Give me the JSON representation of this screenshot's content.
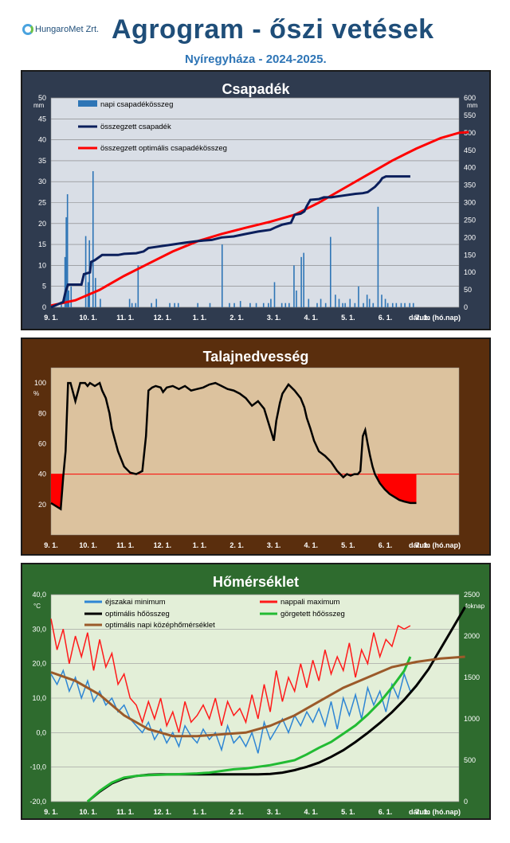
{
  "header": {
    "logo_text": "HungaroMet Zrt.",
    "title": "Agrogram - őszi vetések",
    "subtitle": "Nyíregyháza  - 2024-2025."
  },
  "colors": {
    "precip_frame": "#2f3b4f",
    "moisture_frame": "#5a2e0d",
    "temp_frame": "#2e6b2e",
    "title_blue": "#1f4e79"
  },
  "x_axis": {
    "ticks": [
      "9. 1.",
      "10. 1.",
      "11. 1.",
      "12. 1.",
      "1. 1.",
      "2. 1.",
      "3. 1.",
      "4. 1.",
      "5. 1.",
      "6. 1.",
      "7. 1."
    ],
    "label": "dátum (hó.nap)"
  },
  "chart_data": [
    {
      "type": "bar",
      "title": "Csapadék",
      "y_left_unit": "mm",
      "y_right_unit": "mm",
      "ylim_left": [
        0,
        50
      ],
      "ylim_right": [
        0,
        600
      ],
      "y_left_ticks": [
        "0",
        "5",
        "10",
        "15",
        "20",
        "25",
        "30",
        "35",
        "40",
        "45",
        "50"
      ],
      "y_right_ticks": [
        "0",
        "50",
        "100",
        "150",
        "200",
        "250",
        "300",
        "350",
        "400",
        "450",
        "500",
        "550",
        "600"
      ],
      "series": [
        {
          "name": "napi csapadékösszeg",
          "color": "#2e75b6",
          "kind": "bar",
          "x": [
            8,
            11,
            12,
            13,
            14,
            16,
            28,
            30,
            31,
            34,
            36,
            40,
            64,
            66,
            69,
            71,
            82,
            86,
            97,
            101,
            104,
            120,
            130,
            140,
            146,
            150,
            155,
            163,
            168,
            174,
            178,
            180,
            183,
            189,
            192,
            195,
            199,
            201,
            205,
            207,
            211,
            218,
            221,
            225,
            229,
            233,
            236,
            239,
            241,
            245,
            249,
            252,
            256,
            259,
            261,
            264,
            268,
            271,
            274,
            276,
            280,
            283,
            287,
            290,
            294,
            297
          ],
          "values": [
            1,
            12,
            21.5,
            27,
            4,
            5,
            17,
            6,
            16,
            32.5,
            7,
            2,
            2,
            1,
            1,
            10,
            1,
            2,
            1,
            1,
            1,
            1,
            1,
            15,
            1,
            1,
            1.5,
            1,
            1,
            1,
            1,
            2,
            6,
            1,
            1,
            1,
            10,
            4,
            12,
            13,
            2,
            1,
            2,
            1,
            16.8,
            3,
            2,
            1,
            1,
            2,
            1,
            5,
            1,
            3,
            2,
            1,
            24,
            3,
            2,
            1,
            1,
            1,
            1,
            1,
            1,
            1
          ]
        },
        {
          "name": "összegzett csapadék",
          "color": "#0b1f5c",
          "kind": "line",
          "axis": "right",
          "x": [
            0,
            10,
            12,
            14,
            25,
            27,
            32,
            33,
            36,
            38,
            42,
            45,
            55,
            60,
            70,
            76,
            80,
            90,
            100,
            110,
            121,
            132,
            140,
            150,
            160,
            170,
            180,
            185,
            190,
            197,
            200,
            205,
            208,
            210,
            213,
            220,
            224,
            230,
            240,
            250,
            256,
            260,
            266,
            270,
            272,
            275,
            285,
            295
          ],
          "values": [
            0,
            15,
            45,
            65,
            65,
            95,
            100,
            130,
            135,
            140,
            150,
            150,
            150,
            153,
            155,
            160,
            170,
            175,
            180,
            185,
            190,
            193,
            200,
            203,
            210,
            217,
            222,
            230,
            237,
            242,
            265,
            268,
            275,
            290,
            308,
            310,
            315,
            315,
            320,
            325,
            327,
            330,
            345,
            360,
            370,
            375,
            375,
            375
          ]
        },
        {
          "name": "összegzett optimális csapadékösszeg",
          "color": "#ff0000",
          "kind": "line",
          "axis": "right",
          "x": [
            0,
            20,
            40,
            60,
            80,
            100,
            121,
            140,
            160,
            180,
            200,
            220,
            240,
            260,
            280,
            300,
            320,
            335,
            343
          ],
          "values": [
            5,
            20,
            50,
            90,
            125,
            160,
            190,
            210,
            228,
            245,
            265,
            300,
            340,
            380,
            420,
            455,
            485,
            500,
            502
          ]
        }
      ]
    },
    {
      "type": "area",
      "title": "Talajnedvesség",
      "y_unit": "%",
      "ylim": [
        0,
        110
      ],
      "y_ticks": [
        "20",
        "40",
        "60",
        "80",
        "100"
      ],
      "threshold": 40,
      "series": [
        {
          "name": "talajnedvesség",
          "color": "#000000",
          "x": [
            0,
            4,
            8,
            10,
            12,
            14,
            16,
            20,
            24,
            28,
            30,
            32,
            36,
            40,
            42,
            45,
            48,
            50,
            55,
            60,
            65,
            70,
            75,
            78,
            80,
            83,
            86,
            90,
            92,
            95,
            100,
            105,
            110,
            115,
            120,
            125,
            130,
            135,
            140,
            145,
            150,
            155,
            160,
            165,
            170,
            175,
            180,
            183,
            185,
            188,
            190,
            195,
            200,
            205,
            208,
            210,
            213,
            216,
            220,
            225,
            230,
            235,
            240,
            243,
            246,
            249,
            252,
            254,
            256,
            258,
            260,
            262,
            264,
            266,
            268,
            270,
            274,
            278,
            282,
            286,
            290,
            295,
            300
          ],
          "values": [
            21,
            19,
            17,
            38,
            55,
            100,
            100,
            88,
            100,
            100,
            98,
            100,
            98,
            100,
            95,
            90,
            80,
            70,
            55,
            45,
            41,
            40,
            42,
            65,
            95,
            97,
            98,
            97,
            94,
            97,
            98,
            96,
            98,
            95,
            96,
            97,
            99,
            100,
            98,
            96,
            95,
            93,
            90,
            85,
            88,
            83,
            70,
            62,
            75,
            87,
            93,
            99,
            95,
            90,
            84,
            77,
            70,
            62,
            55,
            52,
            48,
            42,
            38,
            40,
            39,
            40,
            40,
            42,
            65,
            69,
            60,
            52,
            45,
            40,
            37,
            34,
            30,
            27,
            25,
            23,
            22,
            21,
            21
          ]
        }
      ]
    },
    {
      "type": "line",
      "title": "Hőmérséklet",
      "y_left_unit": "°C",
      "y_right_unit": "foknap",
      "ylim_left": [
        -20,
        40
      ],
      "ylim_right": [
        0,
        2500
      ],
      "y_left_ticks": [
        "-20,0",
        "-10,0",
        "0,0",
        "10,0",
        "20,0",
        "30,0",
        "40,0"
      ],
      "y_right_ticks": [
        "0",
        "500",
        "1000",
        "1500",
        "2000",
        "2500"
      ],
      "series": [
        {
          "name": "éjszakai minimum",
          "color": "#2e86d4",
          "axis": "left",
          "x": [
            0,
            5,
            10,
            15,
            20,
            25,
            30,
            35,
            40,
            45,
            50,
            55,
            60,
            65,
            70,
            75,
            80,
            85,
            90,
            95,
            100,
            105,
            110,
            115,
            120,
            125,
            130,
            135,
            140,
            145,
            150,
            155,
            160,
            165,
            170,
            175,
            180,
            185,
            190,
            195,
            200,
            205,
            210,
            215,
            220,
            225,
            230,
            235,
            240,
            245,
            250,
            255,
            260,
            265,
            270,
            275,
            280,
            285,
            290,
            295
          ],
          "values": [
            17,
            14,
            18,
            12,
            16,
            10,
            15,
            9,
            12,
            8,
            10,
            6,
            8,
            4,
            2,
            0,
            3,
            -2,
            1,
            -3,
            0,
            -4,
            2,
            -1,
            -3,
            1,
            -2,
            0,
            -5,
            2,
            -3,
            -1,
            -4,
            0,
            -6,
            3,
            -2,
            1,
            4,
            0,
            5,
            2,
            6,
            3,
            7,
            2,
            9,
            1,
            10,
            5,
            11,
            4,
            13,
            8,
            12,
            6,
            14,
            10,
            17,
            12
          ]
        },
        {
          "name": "nappali maximum",
          "color": "#ff1a1a",
          "axis": "left",
          "x": [
            0,
            5,
            10,
            15,
            20,
            25,
            30,
            35,
            40,
            45,
            50,
            55,
            60,
            65,
            70,
            75,
            80,
            85,
            90,
            95,
            100,
            105,
            110,
            115,
            120,
            125,
            130,
            135,
            140,
            145,
            150,
            155,
            160,
            165,
            170,
            175,
            180,
            185,
            190,
            195,
            200,
            205,
            210,
            215,
            220,
            225,
            230,
            235,
            240,
            245,
            250,
            255,
            260,
            265,
            270,
            275,
            280,
            285,
            290,
            295
          ],
          "values": [
            33,
            24,
            30,
            20,
            28,
            22,
            29,
            18,
            27,
            19,
            23,
            14,
            17,
            10,
            8,
            3,
            9,
            4,
            10,
            2,
            6,
            0,
            9,
            3,
            5,
            8,
            4,
            10,
            2,
            9,
            5,
            7,
            3,
            11,
            4,
            14,
            6,
            18,
            9,
            16,
            12,
            20,
            13,
            21,
            15,
            24,
            17,
            22,
            18,
            26,
            16,
            24,
            20,
            29,
            22,
            27,
            25,
            31,
            30,
            31
          ]
        },
        {
          "name": "optimális hőösszeg",
          "color": "#000000",
          "axis": "right",
          "x": [
            30,
            40,
            50,
            60,
            70,
            80,
            90,
            110,
            130,
            150,
            170,
            180,
            190,
            200,
            210,
            220,
            230,
            240,
            250,
            260,
            270,
            280,
            290,
            300,
            310,
            320,
            330,
            340
          ],
          "values": [
            0,
            120,
            220,
            280,
            310,
            325,
            330,
            330,
            330,
            330,
            330,
            335,
            350,
            380,
            420,
            470,
            540,
            620,
            720,
            830,
            950,
            1080,
            1230,
            1400,
            1600,
            1850,
            2100,
            2350
          ]
        },
        {
          "name": "görgetett hőösszeg",
          "color": "#22bb33",
          "axis": "right",
          "x": [
            30,
            40,
            50,
            60,
            70,
            80,
            90,
            100,
            110,
            120,
            130,
            140,
            150,
            160,
            170,
            180,
            190,
            200,
            210,
            220,
            230,
            240,
            250,
            260,
            270,
            280,
            290,
            295
          ],
          "values": [
            0,
            130,
            230,
            290,
            310,
            320,
            325,
            330,
            335,
            340,
            350,
            370,
            390,
            400,
            420,
            440,
            470,
            500,
            570,
            650,
            720,
            820,
            920,
            1050,
            1200,
            1380,
            1580,
            1750
          ]
        },
        {
          "name": "optimális napi középhőmérséklet",
          "color": "#9b5a2a",
          "axis": "left",
          "x": [
            0,
            20,
            40,
            60,
            80,
            100,
            120,
            140,
            160,
            180,
            200,
            220,
            240,
            260,
            280,
            300,
            320,
            340
          ],
          "values": [
            17.5,
            15,
            11,
            5,
            1,
            -1,
            -1,
            -0.5,
            0,
            2,
            5,
            9,
            13,
            16,
            19,
            20.5,
            21.5,
            22
          ]
        }
      ]
    }
  ]
}
